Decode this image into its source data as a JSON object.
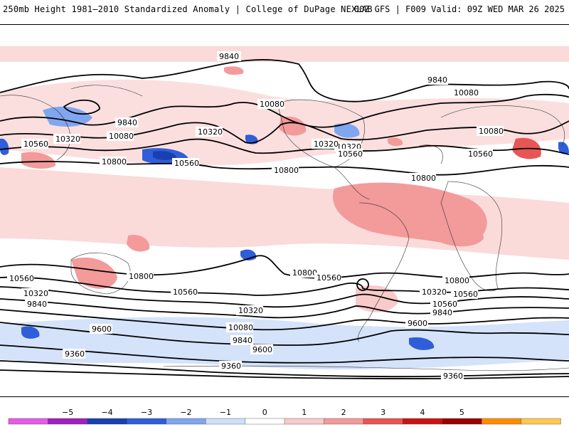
{
  "header": {
    "left_title": "250mb Height 1981–2010 Standardized Anomaly | College of DuPage NEXLAB",
    "right_title": "00Z GFS | F009 Valid: 09Z WED MAR 26 2025"
  },
  "contour_labels": [
    "9840",
    "9840",
    "9840",
    "10080",
    "10080",
    "10080",
    "10320",
    "10320",
    "10320",
    "10560",
    "10560",
    "10800",
    "10800",
    "10800",
    "10320",
    "10560",
    "10080",
    "10560",
    "10560",
    "10800",
    "10800",
    "10560",
    "10560",
    "10320",
    "10320",
    "10800",
    "10560",
    "10560",
    "10320",
    "9840",
    "10080",
    "9840",
    "9600",
    "9600",
    "9840",
    "9600",
    "9360",
    "9360",
    "9360"
  ],
  "colorbar": {
    "tick_labels": [
      "−5",
      "−4",
      "−3",
      "−2",
      "−1",
      "0",
      "1",
      "2",
      "3",
      "4",
      "5"
    ],
    "colors": [
      "#e65ce6",
      "#a020c0",
      "#1a3fb0",
      "#2f5ed8",
      "#7fa6ef",
      "#cfe0fa",
      "#ffffff",
      "#f9caca",
      "#f39a9a",
      "#e85555",
      "#c81414",
      "#9a0000",
      "#ff8c00",
      "#ffc850"
    ]
  }
}
